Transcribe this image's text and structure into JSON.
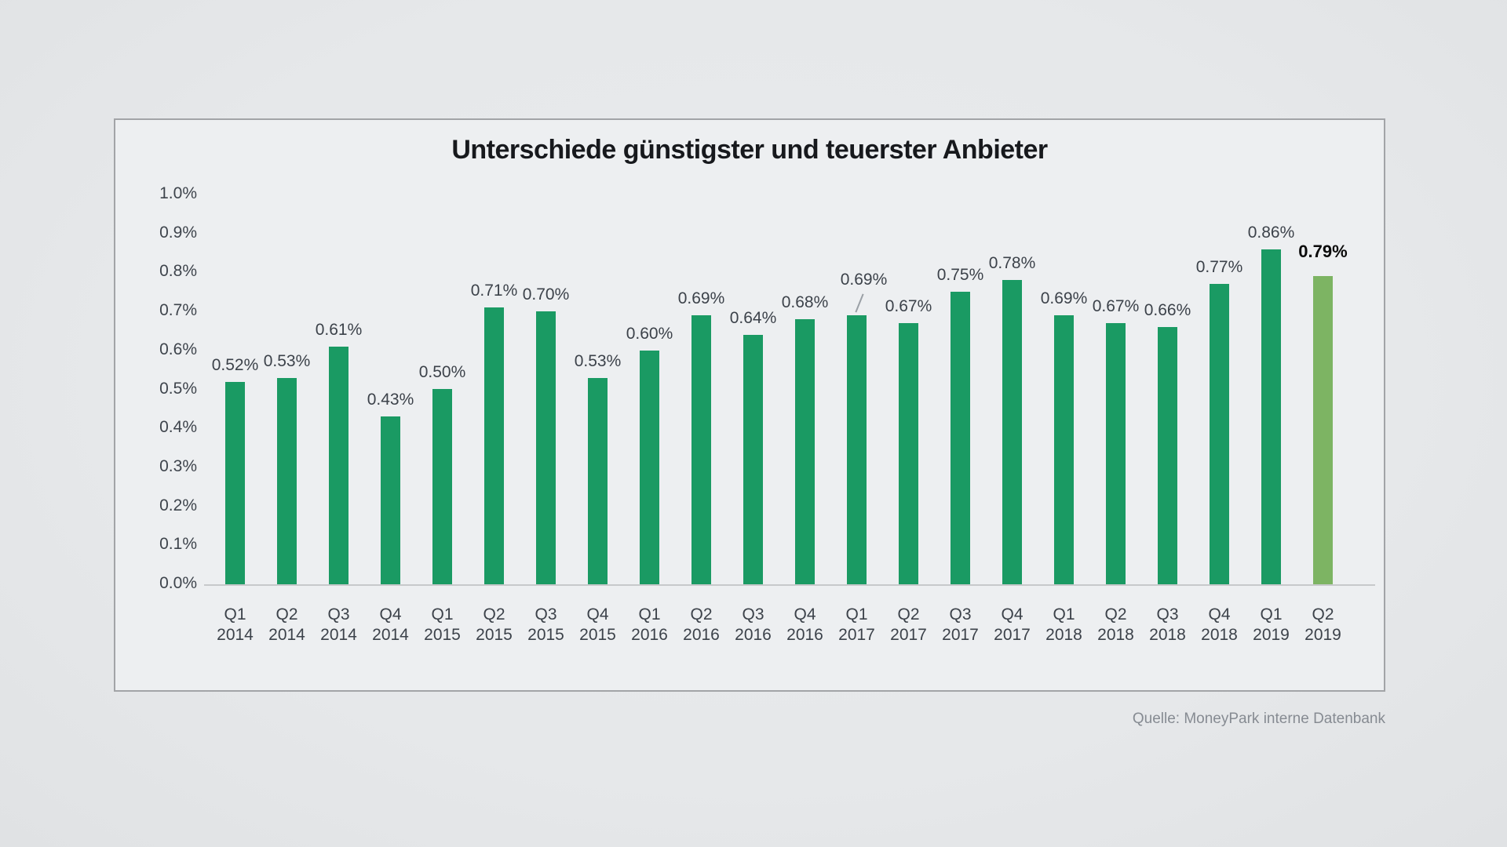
{
  "chart_data": {
    "type": "bar",
    "title": "Unterschiede günstigster und teuerster Anbieter",
    "source": "Quelle: MoneyPark interne Datenbank",
    "unit": "%",
    "ylim": [
      0.0,
      1.0
    ],
    "grid": false,
    "legend": false,
    "y_ticks": [
      "1.0%",
      "0.9%",
      "0.8%",
      "0.7%",
      "0.6%",
      "0.5%",
      "0.4%",
      "0.3%",
      "0.2%",
      "0.1%",
      "0.0%"
    ],
    "colors": {
      "bar": "#1a9a63",
      "highlight_bar": "#7db463",
      "label_text": "#3c424a",
      "highlight_label_text": "#0a0a0a"
    },
    "points": [
      {
        "quarter": "Q1",
        "year": "2014",
        "value": 0.52,
        "label": "0.52%"
      },
      {
        "quarter": "Q2",
        "year": "2014",
        "value": 0.53,
        "label": "0.53%"
      },
      {
        "quarter": "Q3",
        "year": "2014",
        "value": 0.61,
        "label": "0.61%"
      },
      {
        "quarter": "Q4",
        "year": "2014",
        "value": 0.43,
        "label": "0.43%"
      },
      {
        "quarter": "Q1",
        "year": "2015",
        "value": 0.5,
        "label": "0.50%"
      },
      {
        "quarter": "Q2",
        "year": "2015",
        "value": 0.71,
        "label": "0.71%"
      },
      {
        "quarter": "Q3",
        "year": "2015",
        "value": 0.7,
        "label": "0.70%"
      },
      {
        "quarter": "Q4",
        "year": "2015",
        "value": 0.53,
        "label": "0.53%"
      },
      {
        "quarter": "Q1",
        "year": "2016",
        "value": 0.6,
        "label": "0.60%"
      },
      {
        "quarter": "Q2",
        "year": "2016",
        "value": 0.69,
        "label": "0.69%"
      },
      {
        "quarter": "Q3",
        "year": "2016",
        "value": 0.64,
        "label": "0.64%"
      },
      {
        "quarter": "Q4",
        "year": "2016",
        "value": 0.68,
        "label": "0.68%"
      },
      {
        "quarter": "Q1",
        "year": "2017",
        "value": 0.69,
        "label": "0.69%",
        "callout": true
      },
      {
        "quarter": "Q2",
        "year": "2017",
        "value": 0.67,
        "label": "0.67%"
      },
      {
        "quarter": "Q3",
        "year": "2017",
        "value": 0.75,
        "label": "0.75%"
      },
      {
        "quarter": "Q4",
        "year": "2017",
        "value": 0.78,
        "label": "0.78%"
      },
      {
        "quarter": "Q1",
        "year": "2018",
        "value": 0.69,
        "label": "0.69%"
      },
      {
        "quarter": "Q2",
        "year": "2018",
        "value": 0.67,
        "label": "0.67%"
      },
      {
        "quarter": "Q3",
        "year": "2018",
        "value": 0.66,
        "label": "0.66%"
      },
      {
        "quarter": "Q4",
        "year": "2018",
        "value": 0.77,
        "label": "0.77%"
      },
      {
        "quarter": "Q1",
        "year": "2019",
        "value": 0.86,
        "label": "0.86%"
      },
      {
        "quarter": "Q2",
        "year": "2019",
        "value": 0.79,
        "label": "0.79%",
        "highlight": true
      }
    ]
  }
}
